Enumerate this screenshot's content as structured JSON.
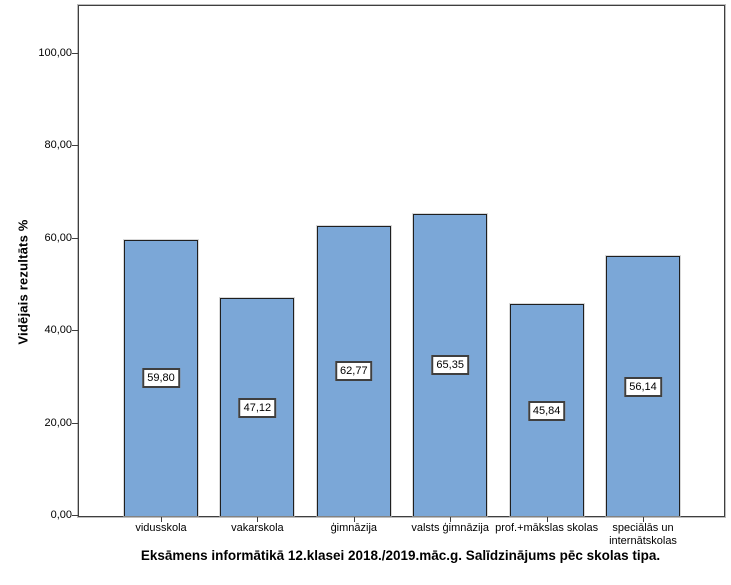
{
  "chart_data": {
    "type": "bar",
    "title": "Eksāmens informātikā 12.klasei 2018./2019.māc.g. Salīdzinājums pēc skolas tipa.",
    "ylabel": "Vidējais rezultāts %",
    "xlabel": "",
    "categories": [
      "vidusskola",
      "vakarskola",
      "ģimnāzija",
      "valsts ģimnāzija",
      "prof.+mākslas skolas",
      "speciālās un internātskolas"
    ],
    "values": [
      59.8,
      47.12,
      62.77,
      65.35,
      45.84,
      56.14
    ],
    "value_labels": [
      "59,80",
      "47,12",
      "62,77",
      "65,35",
      "45,84",
      "56,14"
    ],
    "y_ticks": [
      {
        "value": 0,
        "label": "0,00"
      },
      {
        "value": 20,
        "label": "20,00"
      },
      {
        "value": 40,
        "label": "40,00"
      },
      {
        "value": 60,
        "label": "60,00"
      },
      {
        "value": 80,
        "label": "80,00"
      },
      {
        "value": 100,
        "label": "100,00"
      }
    ],
    "ylim": [
      0,
      110.3
    ],
    "grid": false,
    "legend_position": "none",
    "colors": {
      "bar_fill": "#7BA7D7",
      "bar_border": "#1f1f1f",
      "frame_border": "#3f3f3f",
      "frame_outer": "#bdbdbd",
      "value_box_bg": "#ffffff",
      "text": "#000000",
      "background": "#ffffff"
    }
  }
}
